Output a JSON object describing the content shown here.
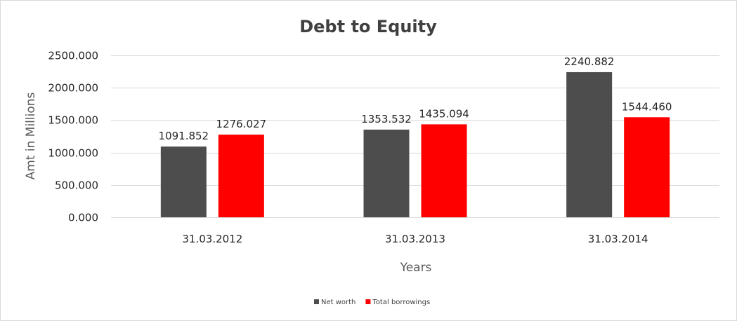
{
  "chart_data": {
    "type": "bar",
    "title": "Debt to Equity",
    "xlabel": "Years",
    "ylabel": "Amt in Millions",
    "categories": [
      "31.03.2012",
      "31.03.2013",
      "31.03.2014"
    ],
    "series": [
      {
        "name": "Net worth",
        "color": "#4d4d4d",
        "values": [
          1091.852,
          1353.532,
          2240.882
        ],
        "labels": [
          "1091.852",
          "1353.532",
          "2240.882"
        ]
      },
      {
        "name": "Total borrowings",
        "color": "#ff0000",
        "values": [
          1276.027,
          1435.094,
          1544.46
        ],
        "labels": [
          "1276.027",
          "1435.094",
          "1544.460"
        ]
      }
    ],
    "ylim": [
      0,
      2500
    ],
    "yticks": [
      0,
      500,
      1000,
      1500,
      2000,
      2500
    ],
    "ytick_labels": [
      "0.000",
      "500.000",
      "1000.000",
      "1500.000",
      "2000.000",
      "2500.000"
    ],
    "grid": true,
    "legend_position": "bottom"
  }
}
